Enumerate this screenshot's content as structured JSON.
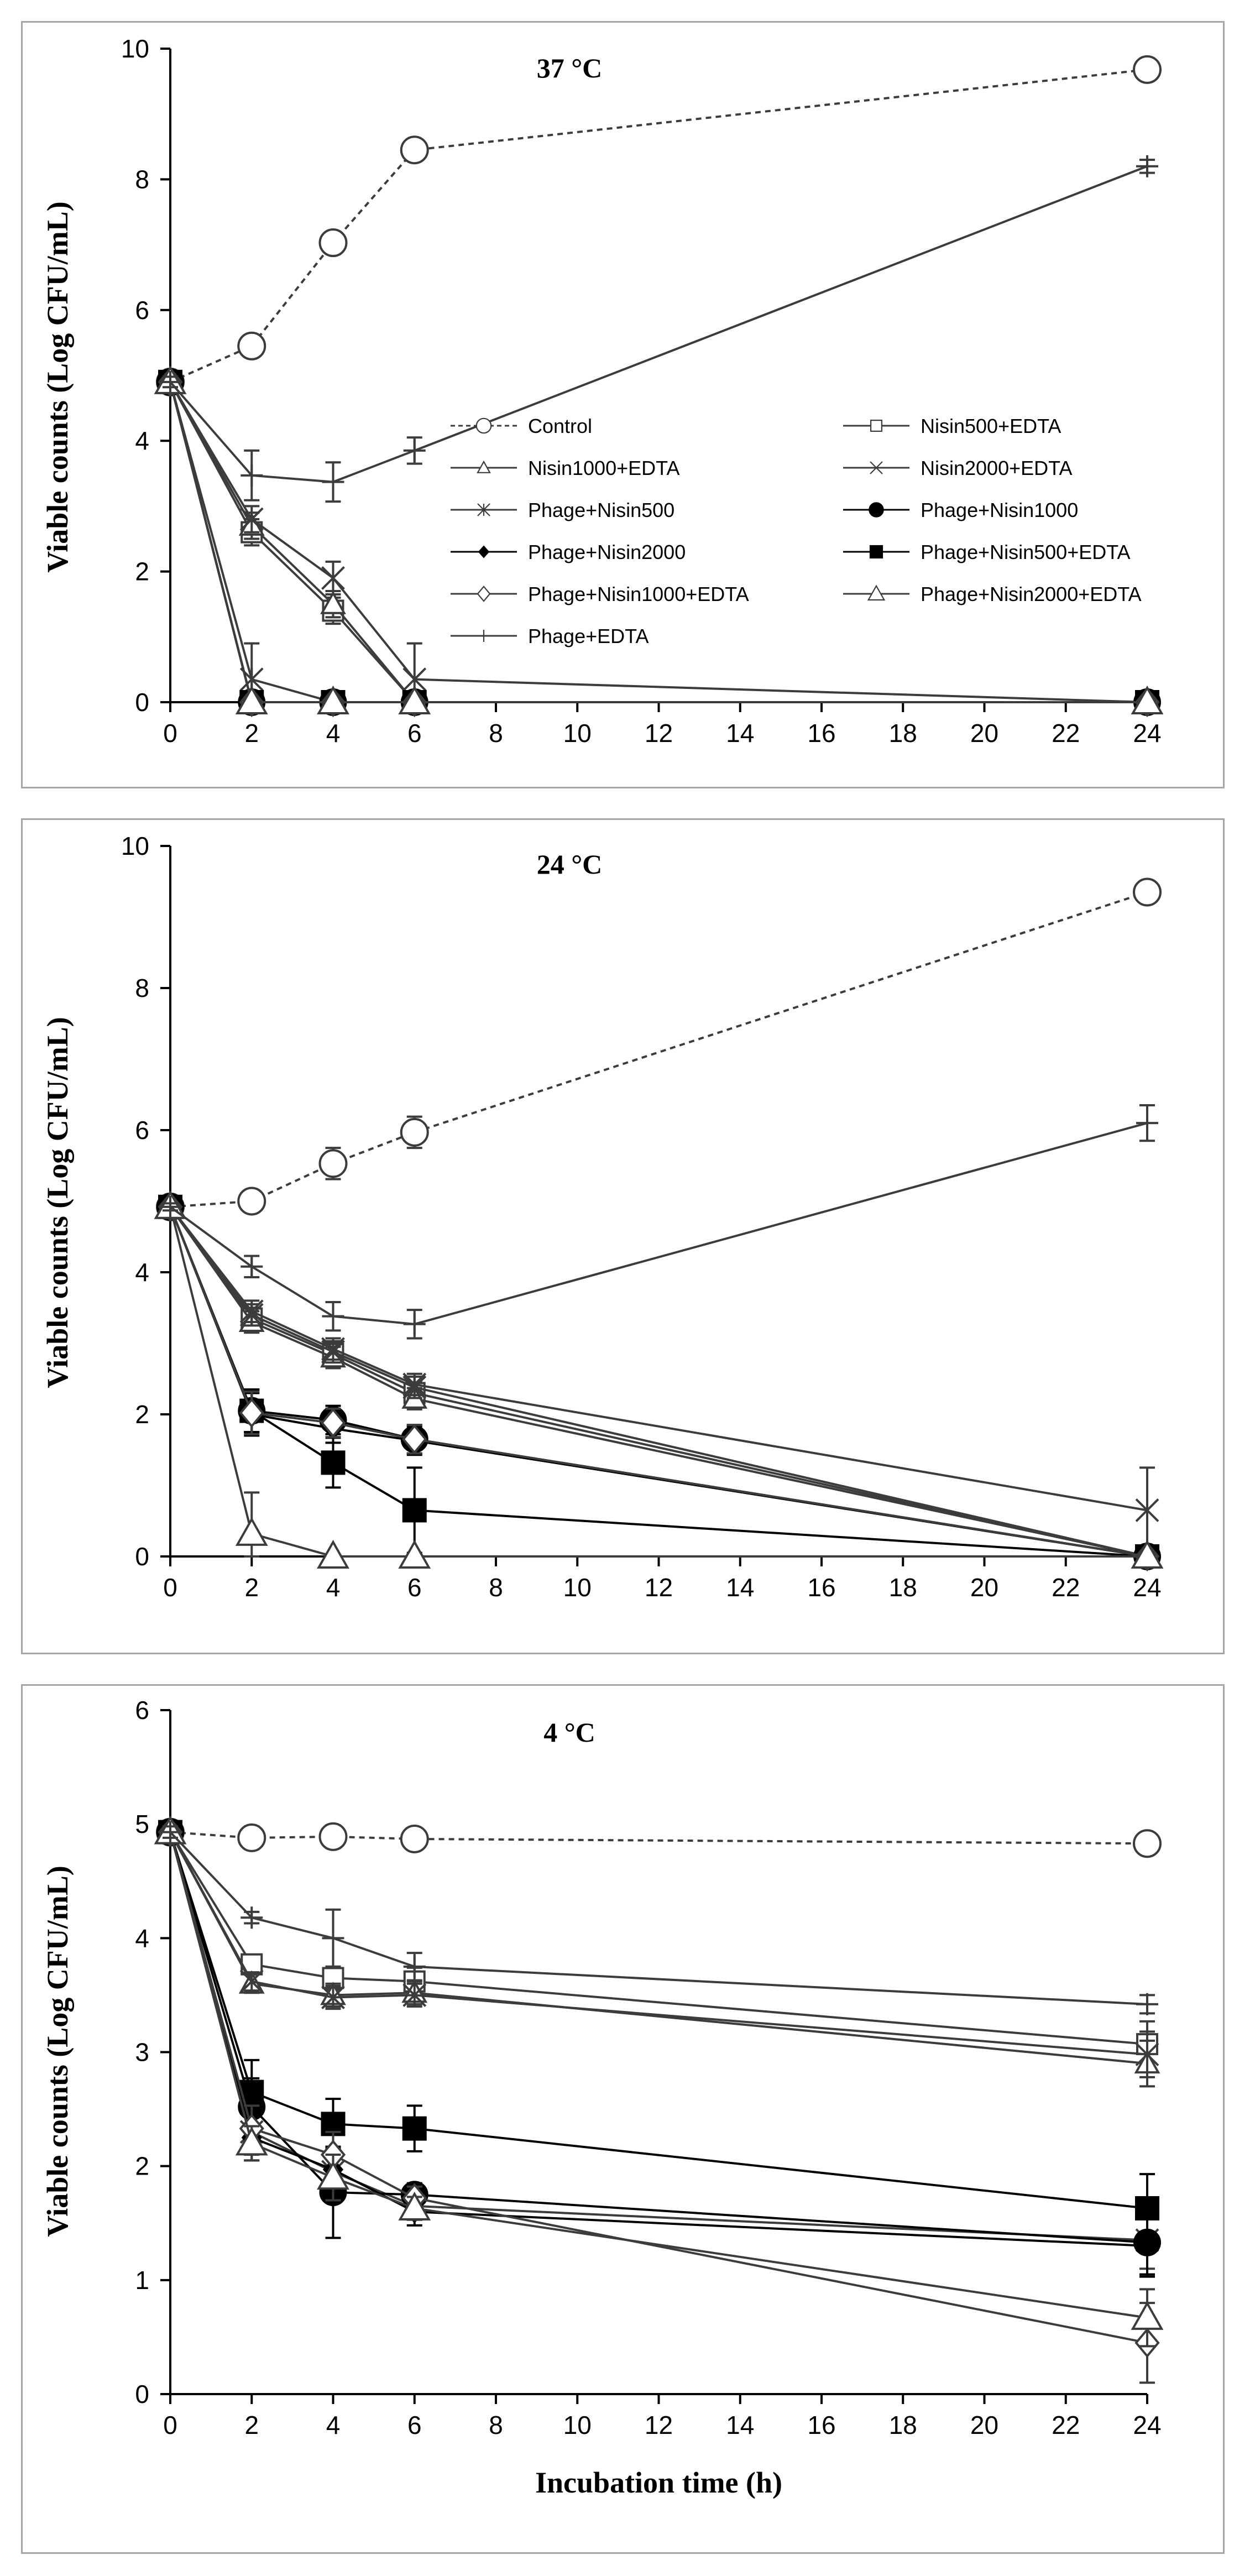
{
  "chart_data": [
    {
      "type": "line",
      "title": "37 °C",
      "xlabel": "",
      "ylabel": "Viable counts (Log CFU/mL)",
      "x": [
        0,
        2,
        4,
        6,
        24
      ],
      "xticks": [
        0,
        2,
        4,
        6,
        8,
        10,
        12,
        14,
        16,
        18,
        20,
        22,
        24
      ],
      "xlim": [
        0,
        24
      ],
      "yticks": [
        0,
        2,
        4,
        6,
        8,
        10
      ],
      "ylim": [
        0,
        10
      ],
      "legend": [
        {
          "name": "Control"
        },
        {
          "name": "Nisin500+EDTA"
        },
        {
          "name": "Nisin1000+EDTA"
        },
        {
          "name": "Nisin2000+EDTA"
        },
        {
          "name": "Phage+Nisin500"
        },
        {
          "name": "Phage+Nisin1000"
        },
        {
          "name": "Phage+Nisin2000"
        },
        {
          "name": "Phage+Nisin500+EDTA"
        },
        {
          "name": "Phage+Nisin1000+EDTA"
        },
        {
          "name": "Phage+Nisin2000+EDTA"
        },
        {
          "name": "Phage+EDTA"
        }
      ],
      "series": [
        {
          "name": "Control",
          "values": [
            4.9,
            5.45,
            7.03,
            8.45,
            9.68
          ],
          "errors": [
            0.08,
            0.1,
            0.12,
            0.1,
            0.08
          ]
        },
        {
          "name": "Nisin500+EDTA",
          "values": [
            4.9,
            2.6,
            1.4,
            0.0,
            0.0
          ],
          "errors": [
            0.08,
            0.2,
            0.2,
            0.0,
            0.0
          ]
        },
        {
          "name": "Nisin1000+EDTA",
          "values": [
            4.9,
            2.7,
            1.5,
            0.0,
            0.0
          ],
          "errors": [
            0.08,
            0.2,
            0.2,
            0.0,
            0.0
          ]
        },
        {
          "name": "Nisin2000+EDTA",
          "values": [
            4.9,
            2.8,
            1.9,
            0.35,
            0.0
          ],
          "errors": [
            0.08,
            0.2,
            0.25,
            0.55,
            0.0
          ]
        },
        {
          "name": "Phage+Nisin500",
          "values": [
            4.9,
            0.35,
            0.0,
            0.0,
            0.0
          ],
          "errors": [
            0.08,
            0.55,
            0.0,
            0.0,
            0.0
          ]
        },
        {
          "name": "Phage+Nisin1000",
          "values": [
            4.9,
            0.0,
            0.0,
            0.0,
            0.0
          ],
          "errors": [
            0.08,
            0.0,
            0.0,
            0.0,
            0.0
          ]
        },
        {
          "name": "Phage+Nisin2000",
          "values": [
            4.9,
            0.0,
            0.0,
            0.0,
            0.0
          ],
          "errors": [
            0.08,
            0.0,
            0.0,
            0.0,
            0.0
          ]
        },
        {
          "name": "Phage+Nisin500+EDTA",
          "values": [
            4.9,
            0.0,
            0.0,
            0.0,
            0.0
          ],
          "errors": [
            0.08,
            0.0,
            0.0,
            0.0,
            0.0
          ]
        },
        {
          "name": "Phage+Nisin1000+EDTA",
          "values": [
            4.9,
            0.0,
            0.0,
            0.0,
            0.0
          ],
          "errors": [
            0.08,
            0.0,
            0.0,
            0.0,
            0.0
          ]
        },
        {
          "name": "Phage+Nisin2000+EDTA",
          "values": [
            4.9,
            0.0,
            0.0,
            0.0,
            0.0
          ],
          "errors": [
            0.08,
            0.0,
            0.0,
            0.0,
            0.0
          ]
        },
        {
          "name": "Phage+EDTA",
          "values": [
            4.9,
            3.47,
            3.37,
            3.85,
            8.2
          ],
          "errors": [
            0.08,
            0.38,
            0.3,
            0.2,
            0.1
          ]
        }
      ]
    },
    {
      "type": "line",
      "title": "24 °C",
      "xlabel": "",
      "ylabel": "Viable counts (Log CFU/mL)",
      "x": [
        0,
        2,
        4,
        6,
        24
      ],
      "xticks": [
        0,
        2,
        4,
        6,
        8,
        10,
        12,
        14,
        16,
        18,
        20,
        22,
        24
      ],
      "xlim": [
        0,
        24
      ],
      "yticks": [
        0,
        2,
        4,
        6,
        8,
        10
      ],
      "ylim": [
        0,
        10
      ],
      "series": [
        {
          "name": "Control",
          "values": [
            4.92,
            5.0,
            5.53,
            5.97,
            9.35
          ],
          "errors": [
            0.05,
            0.05,
            0.22,
            0.22,
            0.12
          ]
        },
        {
          "name": "Nisin500+EDTA",
          "values": [
            4.92,
            3.35,
            2.85,
            2.3,
            0.0
          ],
          "errors": [
            0.05,
            0.15,
            0.15,
            0.15,
            0.0
          ]
        },
        {
          "name": "Nisin1000+EDTA",
          "values": [
            4.92,
            3.3,
            2.8,
            2.22,
            0.0
          ],
          "errors": [
            0.05,
            0.15,
            0.15,
            0.15,
            0.0
          ]
        },
        {
          "name": "Nisin2000+EDTA",
          "values": [
            4.92,
            3.45,
            2.92,
            2.42,
            0.65
          ],
          "errors": [
            0.05,
            0.15,
            0.15,
            0.15,
            0.6
          ]
        },
        {
          "name": "Phage+Nisin500",
          "values": [
            4.92,
            3.4,
            2.88,
            2.38,
            0.0
          ],
          "errors": [
            0.05,
            0.15,
            0.15,
            0.15,
            0.0
          ]
        },
        {
          "name": "Phage+Nisin1000",
          "values": [
            4.92,
            2.05,
            1.92,
            1.65,
            0.0
          ],
          "errors": [
            0.05,
            0.3,
            0.2,
            0.2,
            0.0
          ]
        },
        {
          "name": "Phage+Nisin2000",
          "values": [
            4.92,
            2.0,
            1.8,
            1.63,
            0.0
          ],
          "errors": [
            0.05,
            0.3,
            0.2,
            0.2,
            0.0
          ]
        },
        {
          "name": "Phage+Nisin500+EDTA",
          "values": [
            4.92,
            2.05,
            1.32,
            0.65,
            0.0
          ],
          "errors": [
            0.05,
            0.3,
            0.35,
            0.6,
            0.0
          ]
        },
        {
          "name": "Phage+Nisin1000+EDTA",
          "values": [
            4.92,
            2.02,
            1.88,
            1.65,
            0.0
          ],
          "errors": [
            0.05,
            0.3,
            0.2,
            0.2,
            0.0
          ]
        },
        {
          "name": "Phage+Nisin2000+EDTA",
          "values": [
            4.92,
            0.32,
            0.0,
            0.0,
            0.0
          ],
          "errors": [
            0.05,
            0.58,
            0.0,
            0.0,
            0.0
          ]
        },
        {
          "name": "Phage+EDTA",
          "values": [
            4.92,
            4.08,
            3.38,
            3.27,
            6.1
          ],
          "errors": [
            0.05,
            0.15,
            0.2,
            0.2,
            0.25
          ]
        }
      ]
    },
    {
      "type": "line",
      "title": "4 °C",
      "xlabel": "Incubation time (h)",
      "ylabel": "Viable counts (Log CFU/mL)",
      "x": [
        0,
        2,
        4,
        6,
        24
      ],
      "xticks": [
        0,
        2,
        4,
        6,
        8,
        10,
        12,
        14,
        16,
        18,
        20,
        22,
        24
      ],
      "xlim": [
        0,
        24
      ],
      "yticks": [
        0,
        1,
        2,
        3,
        4,
        5,
        6
      ],
      "ylim": [
        0,
        6
      ],
      "series": [
        {
          "name": "Control",
          "values": [
            4.93,
            4.88,
            4.89,
            4.87,
            4.83
          ],
          "errors": [
            0.05,
            0.1,
            0.1,
            0.05,
            0.05
          ]
        },
        {
          "name": "Nisin500+EDTA",
          "values": [
            4.93,
            3.77,
            3.65,
            3.62,
            3.07
          ],
          "errors": [
            0.05,
            0.08,
            0.1,
            0.12,
            0.2
          ]
        },
        {
          "name": "Nisin1000+EDTA",
          "values": [
            4.93,
            3.6,
            3.5,
            3.52,
            2.9
          ],
          "errors": [
            0.05,
            0.08,
            0.1,
            0.1,
            0.2
          ]
        },
        {
          "name": "Nisin2000+EDTA",
          "values": [
            4.93,
            3.62,
            3.48,
            3.5,
            2.98
          ],
          "errors": [
            0.05,
            0.08,
            0.1,
            0.1,
            0.2
          ]
        },
        {
          "name": "Phage+Nisin500",
          "values": [
            4.93,
            2.3,
            1.95,
            1.65,
            1.35
          ],
          "errors": [
            0.05,
            0.2,
            0.2,
            0.12,
            0.25
          ]
        },
        {
          "name": "Phage+Nisin1000",
          "values": [
            4.93,
            2.52,
            1.77,
            1.75,
            1.33
          ],
          "errors": [
            0.05,
            0.25,
            0.4,
            0.1,
            0.3
          ]
        },
        {
          "name": "Phage+Nisin2000",
          "values": [
            4.93,
            2.25,
            1.97,
            1.6,
            1.3
          ],
          "errors": [
            0.05,
            0.2,
            0.2,
            0.12,
            0.25
          ]
        },
        {
          "name": "Phage+Nisin500+EDTA",
          "values": [
            4.93,
            2.65,
            2.37,
            2.33,
            1.63
          ],
          "errors": [
            0.05,
            0.28,
            0.22,
            0.2,
            0.3
          ]
        },
        {
          "name": "Phage+Nisin1000+EDTA",
          "values": [
            4.93,
            2.33,
            2.1,
            1.72,
            0.45
          ],
          "errors": [
            0.05,
            0.2,
            0.2,
            0.1,
            0.35
          ]
        },
        {
          "name": "Phage+Nisin2000+EDTA",
          "values": [
            4.93,
            2.2,
            1.9,
            1.63,
            0.67
          ],
          "errors": [
            0.05,
            0.15,
            0.2,
            0.1,
            0.25
          ]
        },
        {
          "name": "Phage+EDTA",
          "values": [
            4.93,
            4.18,
            4.0,
            3.75,
            3.42
          ],
          "errors": [
            0.05,
            0.05,
            0.25,
            0.12,
            0.08
          ]
        }
      ]
    }
  ],
  "styles": {
    "Control": {
      "marker": "circle-open",
      "dash": true,
      "color": "#3c3c3c"
    },
    "Nisin500+EDTA": {
      "marker": "square-open",
      "color": "#3c3c3c"
    },
    "Nisin1000+EDTA": {
      "marker": "triangle-open",
      "color": "#3c3c3c"
    },
    "Nisin2000+EDTA": {
      "marker": "x",
      "color": "#3c3c3c"
    },
    "Phage+Nisin500": {
      "marker": "asterisk",
      "color": "#3c3c3c"
    },
    "Phage+Nisin1000": {
      "marker": "circle-filled",
      "color": "#000000"
    },
    "Phage+Nisin2000": {
      "marker": "diamond-filled",
      "color": "#000000"
    },
    "Phage+Nisin500+EDTA": {
      "marker": "square-filled",
      "color": "#000000"
    },
    "Phage+Nisin1000+EDTA": {
      "marker": "diamond-open",
      "color": "#3c3c3c"
    },
    "Phage+Nisin2000+EDTA": {
      "marker": "triangle-open-large",
      "color": "#3c3c3c"
    },
    "Phage+EDTA": {
      "marker": "plus",
      "color": "#3c3c3c"
    }
  }
}
